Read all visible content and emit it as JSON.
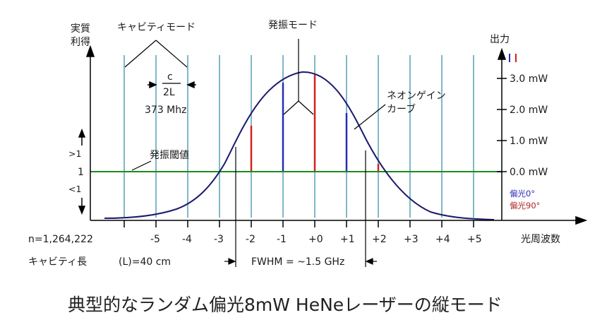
{
  "left_axis": {
    "line1": "実質",
    "line2": "利得",
    "gt1": ">1",
    "one": "1",
    "lt1": "<1"
  },
  "right_axis": {
    "title": "出力",
    "ticks": [
      "3.0 mW",
      "2.0 mW",
      "1.0 mW",
      "0.0 mW"
    ]
  },
  "labels": {
    "cavity_modes": "キャビティモード",
    "spacing_numerator": "c",
    "spacing_denominator": "2L",
    "spacing_value": "373 Mhz",
    "oscillation_modes": "発振モード",
    "gain_curve_line1": "ネオンゲイン",
    "gain_curve_line2": "カーブ",
    "threshold": "発振閾値",
    "fwhm": "FWHM = ~1.5 GHz",
    "x_axis": "光周波数",
    "n_value": "n=1,264,222",
    "cavity_length": "キャビティ長",
    "cavity_length_value": "(L)=40 cm"
  },
  "mode_numbers": [
    "-5",
    "-4",
    "-3",
    "-2",
    "-1",
    "+0",
    "+1",
    "+2",
    "+3",
    "+4",
    "+5"
  ],
  "legend": {
    "blue": "偏光0°",
    "red": "偏光90°"
  },
  "caption": "典型的なランダム偏光8mW HeNeレーザーの縦モード",
  "colors": {
    "mode_line": "#7fb8c6",
    "gain_curve": "#1a1a6e",
    "threshold": "#1f8a1f",
    "blue_mode": "#2b2bb8",
    "red_mode": "#d42020"
  }
}
